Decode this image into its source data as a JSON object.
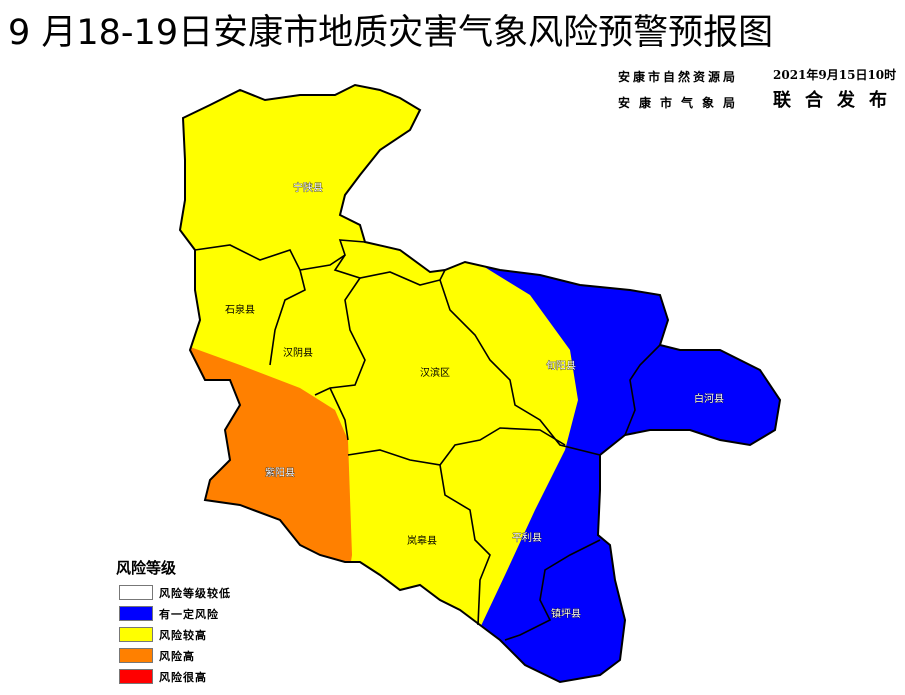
{
  "title": "9 月18-19日安康市地质灾害气象风险预警预报图",
  "issuers": [
    "安康市自然资源局",
    "安康市气象局"
  ],
  "issue_time": "2021年9月15日10时",
  "joint_release": "联合发布",
  "counties": [
    {
      "name": "宁陕县",
      "risk": "风险较高"
    },
    {
      "name": "石泉县",
      "risk": "风险较高"
    },
    {
      "name": "汉阴县",
      "risk": "风险较高"
    },
    {
      "name": "汉滨区",
      "risk": "风险较高"
    },
    {
      "name": "旬阳县",
      "risk": "风险较高"
    },
    {
      "name": "白河县",
      "risk": "有一定风险"
    },
    {
      "name": "紫阳县",
      "risk": "风险高"
    },
    {
      "name": "岚皋县",
      "risk": "风险较高"
    },
    {
      "name": "平利县",
      "risk": "风险较高"
    },
    {
      "name": "镇坪县",
      "risk": "有一定风险"
    }
  ],
  "legend": {
    "title": "风险等级",
    "items": [
      {
        "label": "风险等级较低",
        "color": "#FFFFFF"
      },
      {
        "label": "有一定风险",
        "color": "#0000FF"
      },
      {
        "label": "风险较高",
        "color": "#FFFF00"
      },
      {
        "label": "风险高",
        "color": "#FF8000"
      },
      {
        "label": "风险很高",
        "color": "#FF0000"
      }
    ]
  }
}
